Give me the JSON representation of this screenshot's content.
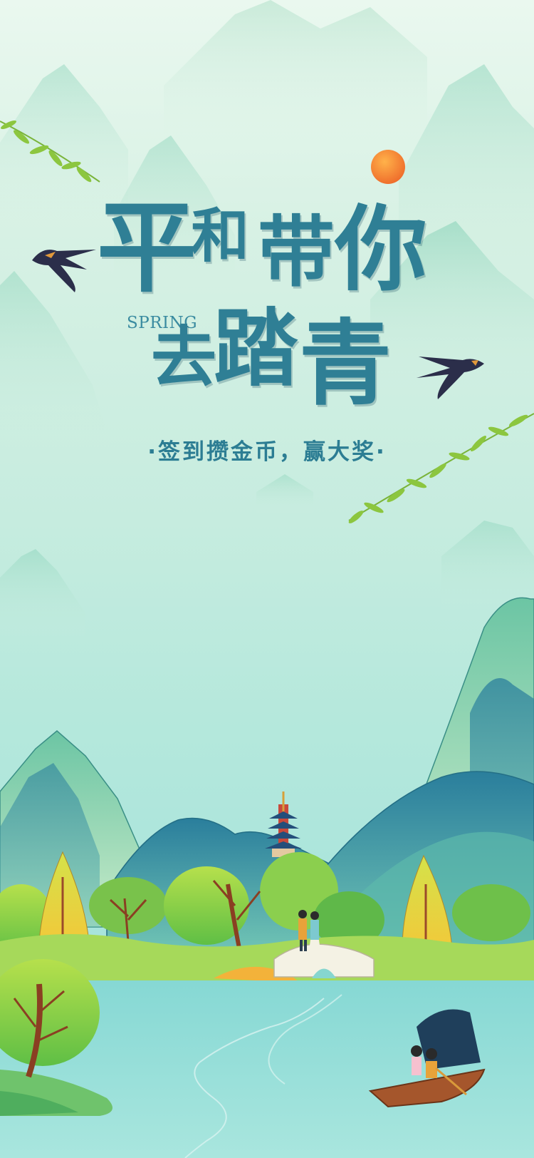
{
  "poster": {
    "title_chars": [
      "平",
      "和",
      "带",
      "你",
      "去",
      "踏",
      "青"
    ],
    "english_word": "SPRING",
    "subtitle": "·签到攒金币，赢大奖·"
  },
  "colors": {
    "title": "#2f7f95",
    "sky_top": "#eaf8ef",
    "water": "#a2e3dd",
    "sun": "#f38a3a",
    "mountain_teal": "#2c8aa3",
    "mountain_green": "#8fd3b3",
    "tree_yellow": "#e8d43c",
    "tree_green": "#8fd24a"
  },
  "icons": [
    "sun-icon",
    "swallow-icon",
    "willow-branch-icon",
    "pagoda-icon",
    "bridge-icon",
    "boat-icon"
  ]
}
